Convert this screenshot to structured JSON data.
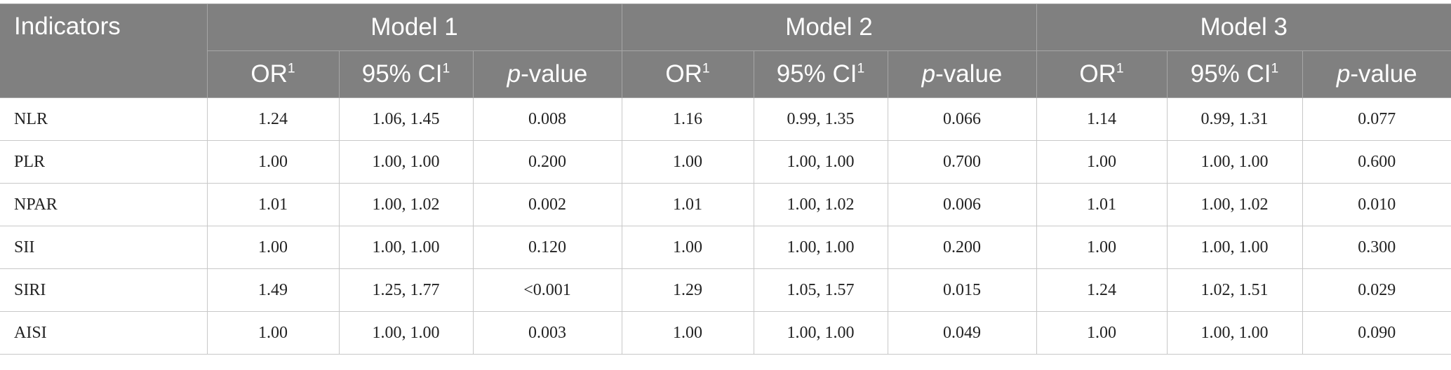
{
  "table": {
    "header": {
      "indicators": "Indicators",
      "models": [
        "Model 1",
        "Model 2",
        "Model 3"
      ],
      "subheaders": [
        {
          "text": "OR",
          "sup": "1"
        },
        {
          "text": "95% CI",
          "sup": "1"
        },
        {
          "italic": "p",
          "text": "-value"
        }
      ]
    },
    "rows": [
      [
        "NLR",
        "1.24",
        "1.06, 1.45",
        "0.008",
        "1.16",
        "0.99, 1.35",
        "0.066",
        "1.14",
        "0.99, 1.31",
        "0.077"
      ],
      [
        "PLR",
        "1.00",
        "1.00, 1.00",
        "0.200",
        "1.00",
        "1.00, 1.00",
        "0.700",
        "1.00",
        "1.00, 1.00",
        "0.600"
      ],
      [
        "NPAR",
        "1.01",
        "1.00, 1.02",
        "0.002",
        "1.01",
        "1.00, 1.02",
        "0.006",
        "1.01",
        "1.00, 1.02",
        "0.010"
      ],
      [
        "SII",
        "1.00",
        "1.00, 1.00",
        "0.120",
        "1.00",
        "1.00, 1.00",
        "0.200",
        "1.00",
        "1.00, 1.00",
        "0.300"
      ],
      [
        "SIRI",
        "1.49",
        "1.25, 1.77",
        "<0.001",
        "1.29",
        "1.05, 1.57",
        "0.015",
        "1.24",
        "1.02, 1.51",
        "0.029"
      ],
      [
        "AISI",
        "1.00",
        "1.00, 1.00",
        "0.003",
        "1.00",
        "1.00, 1.00",
        "0.049",
        "1.00",
        "1.00, 1.00",
        "0.090"
      ]
    ]
  }
}
